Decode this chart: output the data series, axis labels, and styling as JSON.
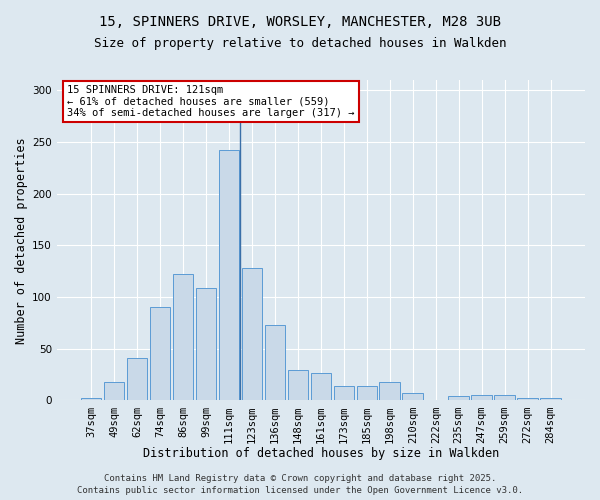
{
  "title_line1": "15, SPINNERS DRIVE, WORSLEY, MANCHESTER, M28 3UB",
  "title_line2": "Size of property relative to detached houses in Walkden",
  "xlabel": "Distribution of detached houses by size in Walkden",
  "ylabel": "Number of detached properties",
  "categories": [
    "37sqm",
    "49sqm",
    "62sqm",
    "74sqm",
    "86sqm",
    "99sqm",
    "111sqm",
    "123sqm",
    "136sqm",
    "148sqm",
    "161sqm",
    "173sqm",
    "185sqm",
    "198sqm",
    "210sqm",
    "222sqm",
    "235sqm",
    "247sqm",
    "259sqm",
    "272sqm",
    "284sqm"
  ],
  "values": [
    2,
    18,
    41,
    90,
    122,
    109,
    242,
    128,
    73,
    29,
    27,
    14,
    14,
    18,
    7,
    0,
    4,
    5,
    5,
    2,
    2
  ],
  "bar_color": "#c9d9e8",
  "bar_edge_color": "#5b9bd5",
  "vline_bar_index": 6,
  "vline_color": "#3a6fa8",
  "annotation_title": "15 SPINNERS DRIVE: 121sqm",
  "annotation_line1": "← 61% of detached houses are smaller (559)",
  "annotation_line2": "34% of semi-detached houses are larger (317) →",
  "annotation_box_color": "#ffffff",
  "annotation_box_edge_color": "#cc0000",
  "ylim": [
    0,
    310
  ],
  "yticks": [
    0,
    50,
    100,
    150,
    200,
    250,
    300
  ],
  "footer_line1": "Contains HM Land Registry data © Crown copyright and database right 2025.",
  "footer_line2": "Contains public sector information licensed under the Open Government Licence v3.0.",
  "background_color": "#dde8f0",
  "plot_background_color": "#dde8f0",
  "grid_color": "#ffffff",
  "title_fontsize": 10,
  "subtitle_fontsize": 9,
  "axis_label_fontsize": 8.5,
  "tick_fontsize": 7.5,
  "annotation_fontsize": 7.5,
  "footer_fontsize": 6.5
}
